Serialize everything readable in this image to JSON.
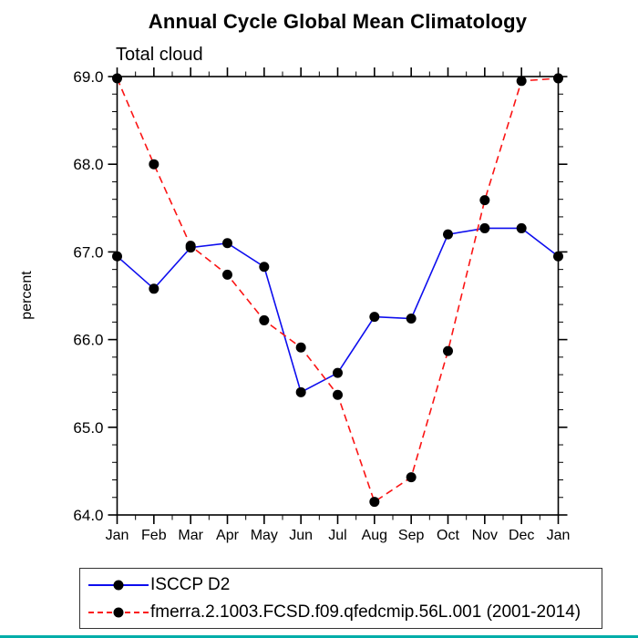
{
  "chart": {
    "title": "Annual Cycle Global Mean Climatology",
    "subtitle": "Total cloud",
    "ylabel": "percent"
  },
  "legend": {
    "items": [
      {
        "label": "ISCCP D2",
        "line_style": "solid",
        "line_color": "#0d0dee",
        "marker_color": "#000000"
      },
      {
        "label": "fmerra.2.1003.FCSD.f09.qfedcmip.56L.001 (2001-2014)",
        "line_style": "dashed",
        "line_color": "#fb1414",
        "marker_color": "#000000"
      }
    ]
  },
  "page": {
    "bottom_strip_color": "#00ada9",
    "axis_color": "#000000"
  },
  "chart_data": {
    "type": "line",
    "title": "Annual Cycle Global Mean Climatology",
    "subtitle": "Total cloud",
    "xlabel": "",
    "ylabel": "percent",
    "categories": [
      "Jan",
      "Feb",
      "Mar",
      "Apr",
      "May",
      "Jun",
      "Jul",
      "Aug",
      "Sep",
      "Oct",
      "Nov",
      "Dec",
      "Jan"
    ],
    "series": [
      {
        "name": "ISCCP D2",
        "color": "#0d0dee",
        "style": "solid",
        "marker": "black-filled-circle",
        "values": [
          66.95,
          66.58,
          67.05,
          67.1,
          66.83,
          65.4,
          65.62,
          66.26,
          66.24,
          67.2,
          67.27,
          67.27,
          66.95
        ]
      },
      {
        "name": "fmerra.2.1003.FCSD.f09.qfedcmip.56L.001 (2001-2014)",
        "color": "#fb1414",
        "style": "dashed",
        "marker": "black-filled-circle",
        "values": [
          68.98,
          68.0,
          67.07,
          66.74,
          66.22,
          65.91,
          65.37,
          64.15,
          64.43,
          65.87,
          67.59,
          68.95,
          68.98
        ]
      }
    ],
    "ylim": [
      64.0,
      69.0
    ],
    "ytick_step": 1.0,
    "yminor_step": 0.2,
    "ytick_labels": [
      "64.0",
      "65.0",
      "66.0",
      "67.0",
      "68.0",
      "69.0"
    ],
    "xminor": "between-months",
    "grid": false,
    "legend_position": "bottom-left-box",
    "ticks": "outward-all-four-sides"
  }
}
